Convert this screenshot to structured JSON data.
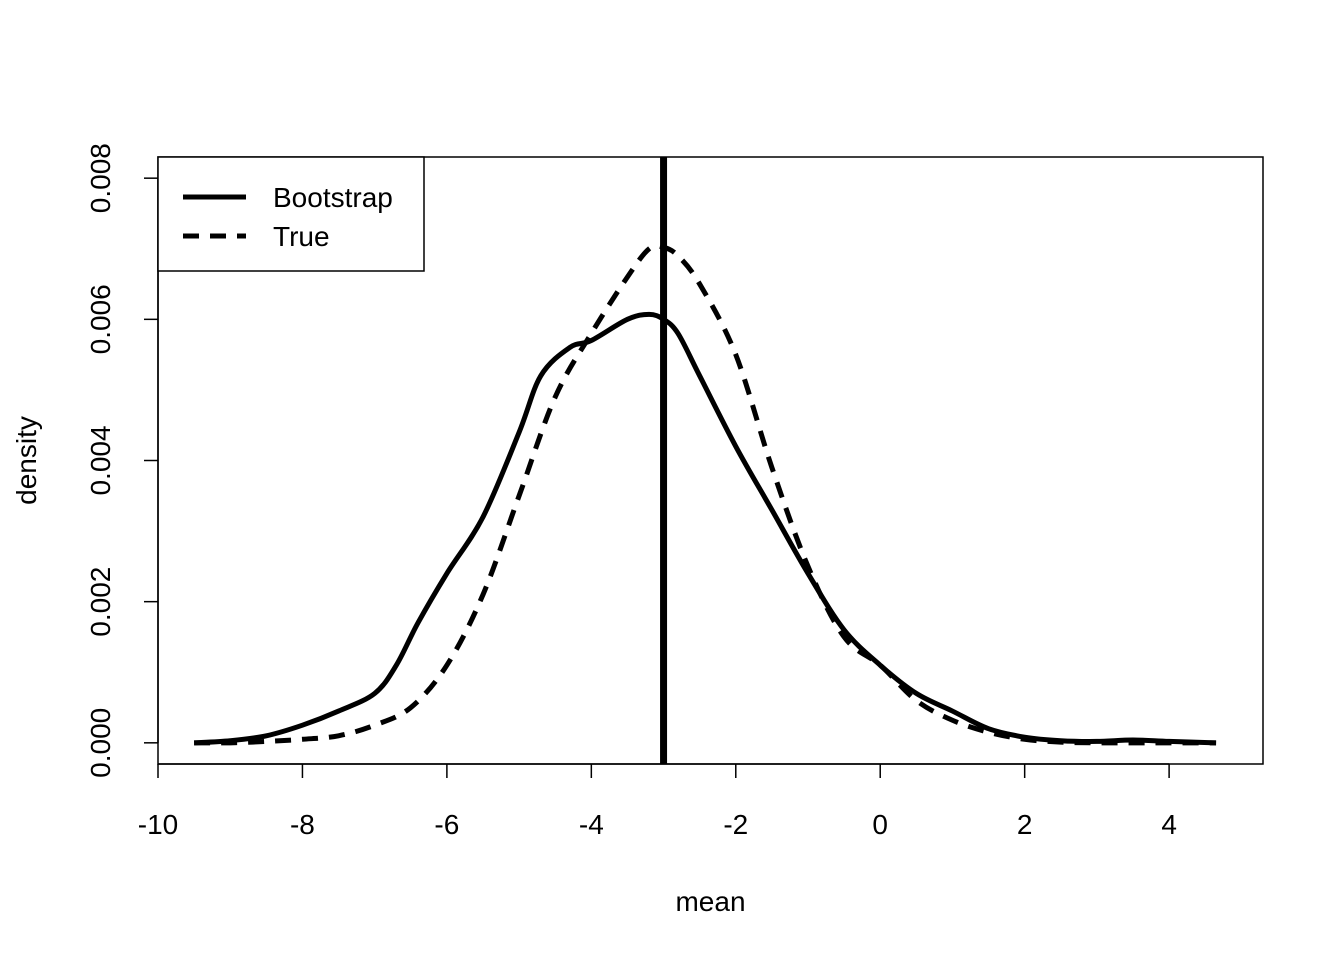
{
  "chart_data": {
    "type": "line",
    "title": "",
    "xlabel": "mean",
    "ylabel": "density",
    "xlim": [
      -10.0,
      5.3
    ],
    "ylim": [
      -0.0003,
      0.0083
    ],
    "x_ticks": [
      -10,
      -8,
      -6,
      -4,
      -2,
      0,
      2,
      4
    ],
    "x_tick_labels": [
      "-10",
      "-8",
      "-6",
      "-4",
      "-2",
      "0",
      "2",
      "4"
    ],
    "y_ticks": [
      0,
      0.002,
      0.004,
      0.006,
      0.008
    ],
    "y_tick_labels": [
      "0.000",
      "0.002",
      "0.004",
      "0.006",
      "0.008"
    ],
    "legend": {
      "position": "top-left",
      "entries": [
        "Bootstrap",
        "True"
      ]
    },
    "vline": {
      "x": -3.0
    },
    "series": [
      {
        "name": "Bootstrap",
        "style": "solid",
        "points": [
          [
            -9.5,
            0.0
          ],
          [
            -9.0,
            3e-05
          ],
          [
            -8.5,
            0.0001
          ],
          [
            -8.0,
            0.00025
          ],
          [
            -7.5,
            0.00045
          ],
          [
            -7.0,
            0.0007
          ],
          [
            -6.7,
            0.0011
          ],
          [
            -6.4,
            0.0017
          ],
          [
            -6.0,
            0.0024
          ],
          [
            -5.5,
            0.0032
          ],
          [
            -5.0,
            0.0044
          ],
          [
            -4.7,
            0.0052
          ],
          [
            -4.3,
            0.0056
          ],
          [
            -4.0,
            0.0057
          ],
          [
            -3.5,
            0.006
          ],
          [
            -3.2,
            0.00607
          ],
          [
            -3.0,
            0.006
          ],
          [
            -2.8,
            0.0058
          ],
          [
            -2.5,
            0.0052
          ],
          [
            -2.0,
            0.0042
          ],
          [
            -1.5,
            0.0033
          ],
          [
            -1.0,
            0.0024
          ],
          [
            -0.5,
            0.0016
          ],
          [
            0.0,
            0.0011
          ],
          [
            0.5,
            0.0007
          ],
          [
            1.0,
            0.00045
          ],
          [
            1.5,
            0.0002
          ],
          [
            2.0,
            8e-05
          ],
          [
            2.5,
            3e-05
          ],
          [
            3.0,
            2e-05
          ],
          [
            3.5,
            4e-05
          ],
          [
            4.0,
            2e-05
          ],
          [
            4.65,
            0.0
          ]
        ]
      },
      {
        "name": "True",
        "style": "dashed",
        "points": [
          [
            -9.5,
            0.0
          ],
          [
            -9.0,
            0.0
          ],
          [
            -8.5,
            2e-05
          ],
          [
            -8.0,
            5e-05
          ],
          [
            -7.5,
            0.0001
          ],
          [
            -7.0,
            0.00025
          ],
          [
            -6.5,
            0.0005
          ],
          [
            -6.0,
            0.0011
          ],
          [
            -5.5,
            0.0021
          ],
          [
            -5.0,
            0.0035
          ],
          [
            -4.5,
            0.0049
          ],
          [
            -4.0,
            0.0058
          ],
          [
            -3.5,
            0.0066
          ],
          [
            -3.2,
            0.007
          ],
          [
            -3.0,
            0.00702
          ],
          [
            -2.8,
            0.0069
          ],
          [
            -2.5,
            0.0065
          ],
          [
            -2.0,
            0.0055
          ],
          [
            -1.5,
            0.0039
          ],
          [
            -1.0,
            0.0025
          ],
          [
            -0.5,
            0.0015
          ],
          [
            0.0,
            0.0011
          ],
          [
            0.5,
            0.0006
          ],
          [
            1.0,
            0.00032
          ],
          [
            1.5,
            0.00015
          ],
          [
            2.0,
            5e-05
          ],
          [
            2.5,
            1e-05
          ],
          [
            3.0,
            0.0
          ],
          [
            3.5,
            0.0
          ],
          [
            4.0,
            0.0
          ],
          [
            4.65,
            0.0
          ]
        ]
      }
    ]
  }
}
